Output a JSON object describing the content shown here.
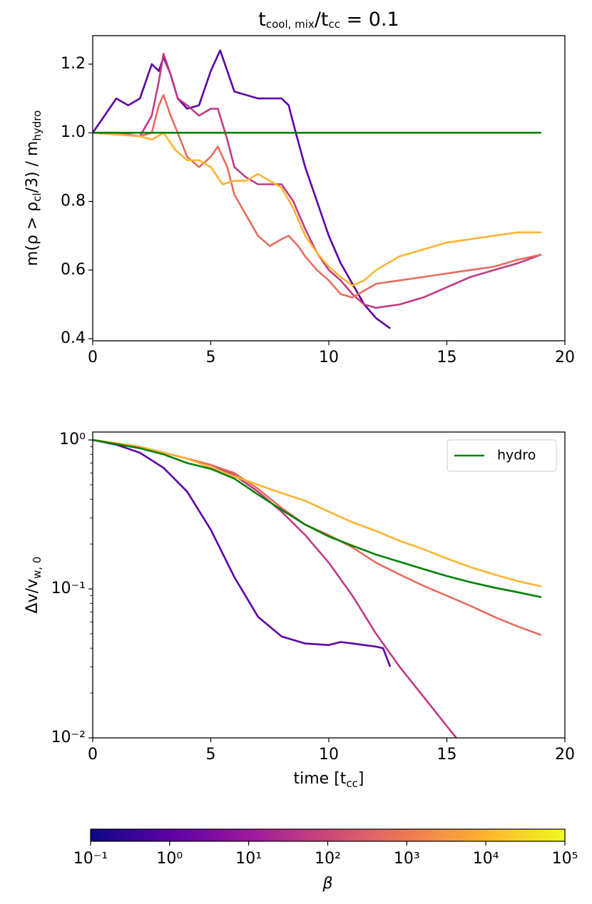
{
  "chart_data": [
    {
      "type": "line",
      "title": [
        "t",
        "cool, mix",
        "/t",
        "cc",
        " = 0.1"
      ],
      "ylabel": [
        "m(ρ > ρ",
        "cl",
        "/3) / m",
        "hydro"
      ],
      "xlim": [
        0,
        20
      ],
      "xticks": [
        0,
        5,
        10,
        15,
        20
      ],
      "ylim": [
        0.394,
        1.283
      ],
      "yticks": [
        0.4,
        0.6,
        0.8,
        {
          "value": 1.0,
          "label": "1.0"
        },
        1.2
      ],
      "series": [
        {
          "color": "#5d01a6",
          "x": [
            0,
            0.5,
            1,
            1.5,
            2,
            2.5,
            2.8,
            3,
            3.3,
            3.6,
            4,
            4.5,
            5,
            5.4,
            5.7,
            6,
            6.5,
            7,
            8,
            8.3,
            8.6,
            9,
            9.5,
            10,
            10.5,
            11,
            11.5,
            12,
            12.6
          ],
          "values": [
            1.0,
            1.05,
            1.1,
            1.08,
            1.1,
            1.2,
            1.18,
            1.22,
            1.17,
            1.1,
            1.07,
            1.08,
            1.18,
            1.24,
            1.18,
            1.12,
            1.11,
            1.1,
            1.1,
            1.08,
            1.0,
            0.9,
            0.8,
            0.7,
            0.62,
            0.56,
            0.5,
            0.46,
            0.43
          ]
        },
        {
          "color": "#c03a83",
          "x": [
            0,
            1,
            2,
            2.5,
            2.8,
            3,
            3.3,
            3.6,
            4,
            4.5,
            5,
            5.3,
            5.7,
            6,
            6.5,
            7,
            8,
            8.5,
            9,
            9.5,
            10,
            10.5,
            11,
            11.5,
            12,
            13,
            14,
            15,
            16,
            17,
            18,
            19
          ],
          "values": [
            1.0,
            1.0,
            0.99,
            1.05,
            1.15,
            1.23,
            1.17,
            1.1,
            1.08,
            1.05,
            1.07,
            1.07,
            0.98,
            0.9,
            0.87,
            0.85,
            0.85,
            0.8,
            0.72,
            0.65,
            0.6,
            0.57,
            0.53,
            0.5,
            0.49,
            0.5,
            0.52,
            0.55,
            0.58,
            0.6,
            0.62,
            0.645
          ]
        },
        {
          "color": "#e66c5c",
          "x": [
            0,
            2,
            2.5,
            2.8,
            3,
            3.3,
            3.6,
            4,
            4.5,
            5,
            5.3,
            5.7,
            6,
            6.5,
            7,
            7.5,
            8,
            8.3,
            8.7,
            9,
            9.5,
            10,
            10.5,
            11,
            11.5,
            12,
            13,
            14,
            15,
            16,
            17,
            18,
            19
          ],
          "values": [
            1.0,
            0.99,
            1.0,
            1.08,
            1.11,
            1.05,
            1.0,
            0.93,
            0.9,
            0.93,
            0.96,
            0.9,
            0.82,
            0.76,
            0.7,
            0.67,
            0.69,
            0.7,
            0.67,
            0.64,
            0.6,
            0.57,
            0.53,
            0.52,
            0.54,
            0.56,
            0.57,
            0.58,
            0.59,
            0.6,
            0.61,
            0.63,
            0.645
          ]
        },
        {
          "color": "#fdb42f",
          "x": [
            0,
            2,
            2.5,
            3,
            3.5,
            4,
            4.5,
            5,
            5.5,
            6,
            6.5,
            7,
            7.5,
            8,
            8.5,
            9,
            9.5,
            10,
            10.5,
            11,
            11.5,
            12,
            13,
            14,
            15,
            16,
            17,
            18,
            19
          ],
          "values": [
            1.0,
            0.99,
            0.98,
            1.0,
            0.95,
            0.92,
            0.92,
            0.9,
            0.85,
            0.86,
            0.86,
            0.88,
            0.86,
            0.84,
            0.78,
            0.7,
            0.65,
            0.61,
            0.58,
            0.555,
            0.57,
            0.6,
            0.64,
            0.66,
            0.68,
            0.69,
            0.7,
            0.71,
            0.71
          ]
        },
        {
          "color": "#008000",
          "x": [
            0,
            19
          ],
          "values": [
            1.0,
            1.0
          ]
        }
      ]
    },
    {
      "type": "line",
      "ylog": true,
      "xlabel": [
        "time [t",
        "cc",
        "]"
      ],
      "ylabel": [
        "Δv/v",
        "w, 0"
      ],
      "xlim": [
        0,
        20
      ],
      "xticks": [
        0,
        5,
        10,
        15,
        20
      ],
      "ylim": [
        0.01,
        1.13
      ],
      "yticks": [
        {
          "value": 0.01,
          "label": "10⁻²"
        },
        {
          "value": 0.1,
          "label": "10⁻¹"
        },
        {
          "value": 1,
          "label": "10⁰"
        }
      ],
      "legend": "upper right",
      "series": [
        {
          "color": "#5d01a6",
          "x": [
            0,
            1,
            2,
            3,
            4,
            5,
            6,
            7,
            8,
            9,
            10,
            10.5,
            11,
            12,
            12.3,
            12.6
          ],
          "values": [
            1.0,
            0.93,
            0.82,
            0.65,
            0.45,
            0.25,
            0.12,
            0.065,
            0.048,
            0.043,
            0.042,
            0.044,
            0.043,
            0.041,
            0.04,
            0.03
          ]
        },
        {
          "color": "#c03a83",
          "x": [
            0,
            2,
            4,
            5,
            6,
            7,
            8,
            9,
            10,
            11,
            12,
            13,
            14,
            15,
            15.4
          ],
          "values": [
            1.0,
            0.9,
            0.75,
            0.68,
            0.58,
            0.45,
            0.33,
            0.23,
            0.15,
            0.09,
            0.05,
            0.03,
            0.019,
            0.012,
            0.01
          ]
        },
        {
          "color": "#e66c5c",
          "x": [
            0,
            2,
            4,
            5,
            6,
            7,
            8,
            9,
            10,
            11,
            12,
            13,
            14,
            15,
            16,
            17,
            18,
            19
          ],
          "values": [
            1.0,
            0.9,
            0.75,
            0.68,
            0.6,
            0.47,
            0.35,
            0.27,
            0.23,
            0.19,
            0.15,
            0.125,
            0.105,
            0.09,
            0.077,
            0.065,
            0.056,
            0.049
          ]
        },
        {
          "color": "#fdb42f",
          "x": [
            0,
            2,
            4,
            6,
            7,
            8,
            9,
            10,
            11,
            12,
            13,
            14,
            15,
            16,
            17,
            18,
            19
          ],
          "values": [
            1.0,
            0.9,
            0.75,
            0.57,
            0.5,
            0.44,
            0.39,
            0.33,
            0.28,
            0.245,
            0.21,
            0.185,
            0.16,
            0.14,
            0.125,
            0.113,
            0.104
          ]
        },
        {
          "name": "hydro",
          "color": "#008000",
          "x": [
            0,
            2,
            3,
            4,
            5,
            6,
            7,
            8,
            9,
            10,
            11,
            12,
            13,
            14,
            15,
            16,
            17,
            18,
            19
          ],
          "values": [
            1.0,
            0.88,
            0.8,
            0.7,
            0.64,
            0.55,
            0.43,
            0.34,
            0.27,
            0.225,
            0.195,
            0.17,
            0.152,
            0.136,
            0.122,
            0.111,
            0.102,
            0.095,
            0.088
          ]
        }
      ]
    },
    {
      "type": "colorbar",
      "xlog": true,
      "xlabel": "β",
      "colors": [
        "#0d0887",
        "#5c01a6",
        "#9c179e",
        "#cc4778",
        "#ed7953",
        "#fdb42f",
        "#f0f921"
      ],
      "xlim": [
        0.1,
        100000
      ],
      "xticks": [
        {
          "value": 0.1,
          "label": "10⁻¹"
        },
        {
          "value": 1,
          "label": "10⁰"
        },
        {
          "value": 10,
          "label": "10¹"
        },
        {
          "value": 100,
          "label": "10²"
        },
        {
          "value": 1000,
          "label": "10³"
        },
        {
          "value": 10000,
          "label": "10⁴"
        },
        {
          "value": 100000,
          "label": "10⁵"
        }
      ]
    }
  ]
}
